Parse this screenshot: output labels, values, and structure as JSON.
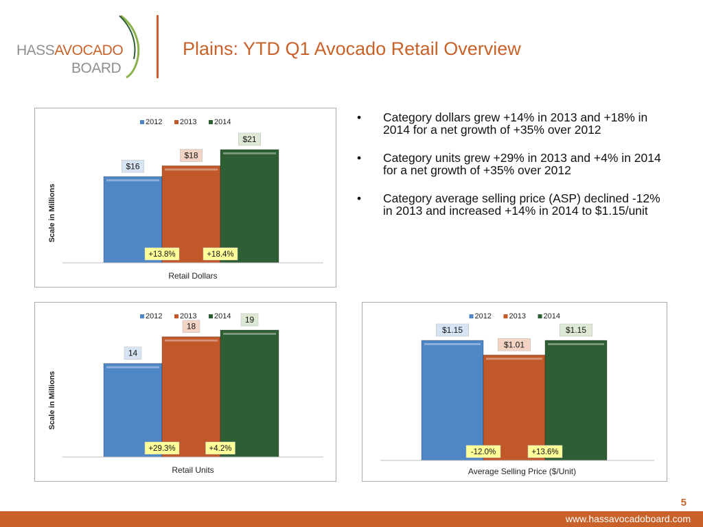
{
  "header": {
    "logo_hass": "HASS",
    "logo_avocado": "AVOCADO",
    "logo_board": "BOARD",
    "title": "Plains: YTD Q1 Avocado Retail Overview"
  },
  "bullets": [
    "Category dollars grew +14% in 2013 and +18% in 2014 for a net growth of +35% over 2012",
    "Category units grew +29% in 2013 and +4% in 2014 for a net growth of +35% over 2012",
    "Category average selling price (ASP) declined -12% in 2013 and increased +14% in 2014 to $1.15/unit"
  ],
  "footer": {
    "page_number": "5",
    "url": "www.hassavocadoboard.com"
  },
  "colors": {
    "2012": "#4f86c6",
    "2013": "#c0582a",
    "2014": "#2e5e33",
    "accent": "#c8612a"
  },
  "chart_data": [
    {
      "id": "dollars",
      "type": "bar",
      "categories": [
        "2012",
        "2013",
        "2014"
      ],
      "values": [
        16,
        18,
        21
      ],
      "value_labels": [
        "$16",
        "$18",
        "$21"
      ],
      "growth_labels": [
        "+13.8%",
        "+18.4%"
      ],
      "xlabel": "Retail Dollars",
      "ylabel": "Scale in Millions",
      "legend": [
        "2012",
        "2013",
        "2014"
      ],
      "ylim": [
        0,
        24
      ],
      "legend_position": "top"
    },
    {
      "id": "units",
      "type": "bar",
      "categories": [
        "2012",
        "2013",
        "2014"
      ],
      "values": [
        14,
        18,
        19
      ],
      "value_labels": [
        "14",
        "18",
        "19"
      ],
      "growth_labels": [
        "+29.3%",
        "+4.2%"
      ],
      "xlabel": "Retail Units",
      "ylabel": "Scale in Millions",
      "legend": [
        "2012",
        "2013",
        "2014"
      ],
      "ylim": [
        0,
        22
      ],
      "legend_position": "top"
    },
    {
      "id": "asp",
      "type": "bar",
      "categories": [
        "2012",
        "2013",
        "2014"
      ],
      "values": [
        1.15,
        1.01,
        1.15
      ],
      "value_labels": [
        "$1.15",
        "$1.01",
        "$1.15"
      ],
      "growth_labels": [
        "-12.0%",
        "+13.6%"
      ],
      "xlabel": "Average Selling Price ($/Unit)",
      "ylabel": "",
      "legend": [
        "2012",
        "2013",
        "2014"
      ],
      "ylim": [
        0,
        1.3
      ],
      "legend_position": "top"
    }
  ]
}
